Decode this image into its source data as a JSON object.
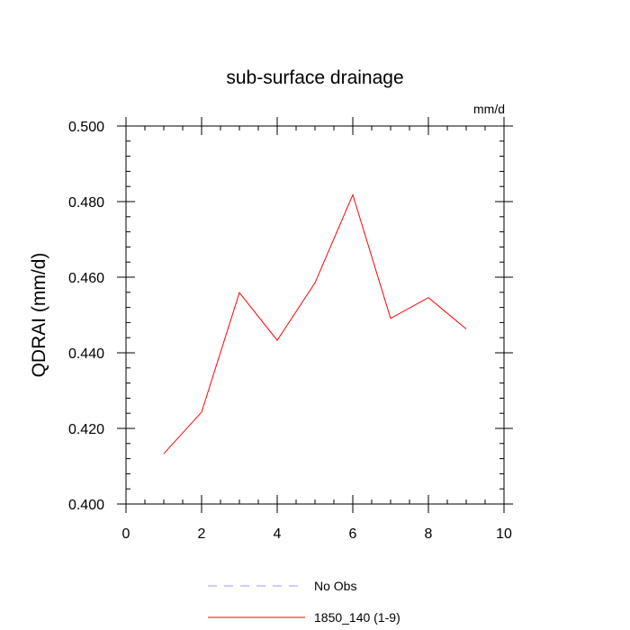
{
  "chart_data": {
    "type": "line",
    "title": "sub-surface drainage",
    "units": "mm/d",
    "ylabel": "QDRAI  (mm/d)",
    "xlim": [
      0,
      10
    ],
    "ylim": [
      0.4,
      0.5
    ],
    "x_ticks": [
      {
        "value": 0,
        "label": "0"
      },
      {
        "value": 2,
        "label": "2"
      },
      {
        "value": 4,
        "label": "4"
      },
      {
        "value": 6,
        "label": "6"
      },
      {
        "value": 8,
        "label": "8"
      },
      {
        "value": 10,
        "label": "10"
      }
    ],
    "y_ticks": [
      {
        "value": 0.4,
        "label": "0.400"
      },
      {
        "value": 0.42,
        "label": "0.420"
      },
      {
        "value": 0.44,
        "label": "0.440"
      },
      {
        "value": 0.46,
        "label": "0.460"
      },
      {
        "value": 0.48,
        "label": "0.480"
      },
      {
        "value": 0.5,
        "label": "0.500"
      }
    ],
    "grid": false,
    "legend_position": "bottom",
    "series": [
      {
        "name": "1850_140 (1-9)",
        "color": "#ff0000",
        "line_style": "solid",
        "x": [
          1,
          2,
          3,
          4,
          5,
          6,
          7,
          8,
          9
        ],
        "values": [
          0.4133,
          0.4243,
          0.4559,
          0.4433,
          0.4585,
          0.4818,
          0.4491,
          0.4546,
          0.4463
        ]
      }
    ],
    "legend": [
      {
        "label": "No Obs",
        "color": "#9a9af0",
        "line_style": "dashed"
      },
      {
        "label": "1850_140 (1-9)",
        "color": "#ff0000",
        "line_style": "solid"
      }
    ]
  }
}
